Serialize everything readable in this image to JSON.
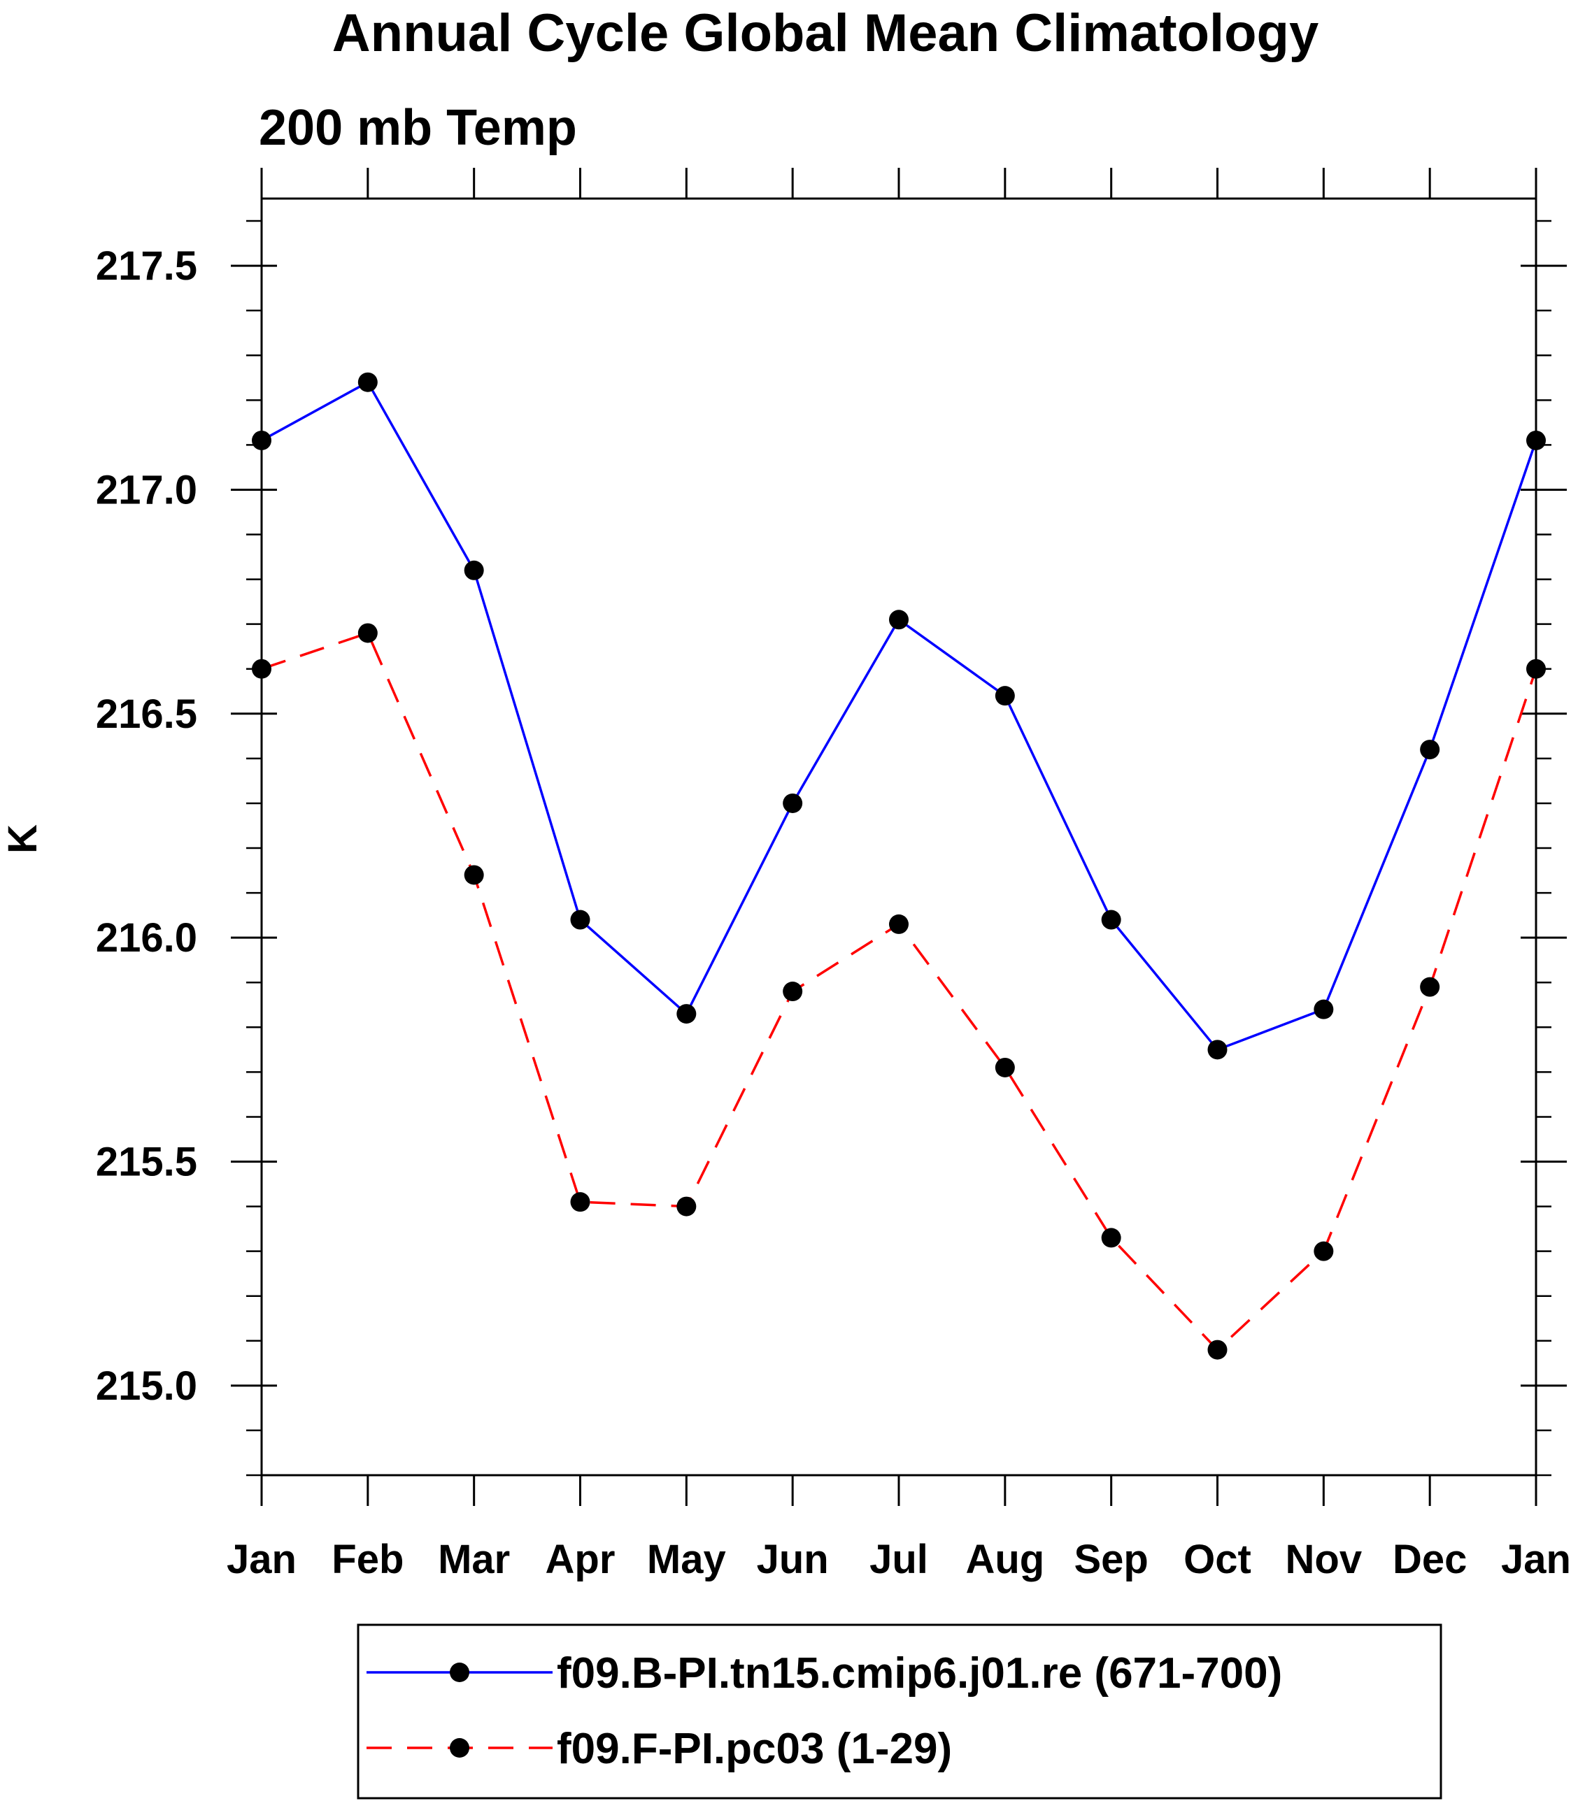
{
  "chart_data": {
    "type": "line",
    "title": "Annual Cycle Global Mean Climatology",
    "subtitle": "200 mb Temp",
    "xlabel": "",
    "ylabel": "K",
    "categories": [
      "Jan",
      "Feb",
      "Mar",
      "Apr",
      "May",
      "Jun",
      "Jul",
      "Aug",
      "Sep",
      "Oct",
      "Nov",
      "Dec",
      "Jan"
    ],
    "ylim": [
      214.8,
      217.65
    ],
    "yticks": [
      215.0,
      215.5,
      216.0,
      216.5,
      217.0,
      217.5
    ],
    "ytick_labels": [
      "215.0",
      "215.5",
      "216.0",
      "216.5",
      "217.0",
      "217.5"
    ],
    "legend_placement": "bottom",
    "series": [
      {
        "name": "f09.B-PI.tn15.cmip6.j01.re (671-700)",
        "color": "#0000ff",
        "style": "solid",
        "marker": "circle",
        "values": [
          217.11,
          217.24,
          216.82,
          216.04,
          215.83,
          216.3,
          216.71,
          216.54,
          216.04,
          215.75,
          215.84,
          216.42,
          217.11
        ]
      },
      {
        "name": "f09.F-PI.pc03 (1-29)",
        "color": "#ff0000",
        "style": "dashed",
        "marker": "circle",
        "values": [
          216.6,
          216.68,
          216.14,
          215.41,
          215.4,
          215.88,
          216.03,
          215.71,
          215.33,
          215.08,
          215.3,
          215.89,
          216.6
        ]
      }
    ]
  }
}
